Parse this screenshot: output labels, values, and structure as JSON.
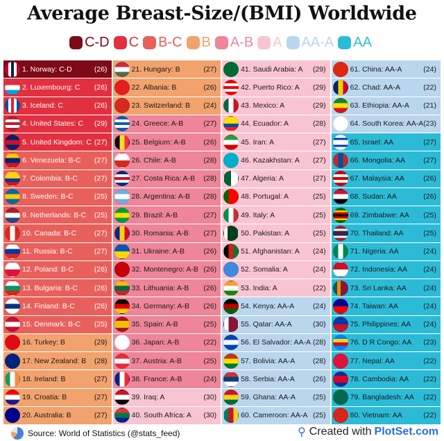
{
  "title": "Average Breast-Size/(BMI) Worldwide",
  "legend": [
    {
      "label": "C-D",
      "color": "#7d0a16"
    },
    {
      "label": "C",
      "color": "#e1303f"
    },
    {
      "label": "B-C",
      "color": "#e8605b"
    },
    {
      "label": "B",
      "color": "#f1a26d"
    },
    {
      "label": "A-B",
      "color": "#ee8598"
    },
    {
      "label": "A",
      "color": "#f9c4d1"
    },
    {
      "label": "AA-A",
      "color": "#b9d6ed"
    },
    {
      "label": "AA",
      "color": "#2cbbd7"
    }
  ],
  "chart_data": {
    "type": "table",
    "title": "Average Breast-Size/(BMI) Worldwide",
    "columns": [
      "rank",
      "country",
      "size",
      "bmi"
    ],
    "rows": [
      [
        1,
        "Norway",
        "C-D",
        26,
        "v",
        [
          "#ba0c2f",
          "#fff",
          "#00205b",
          "#fff",
          "#ba0c2f"
        ]
      ],
      [
        2,
        "Luxembourg",
        "C",
        26,
        "h",
        [
          "#ed2939",
          "#fff",
          "#00a1de"
        ]
      ],
      [
        3,
        "Iceland",
        "C",
        26,
        "v",
        [
          "#02529c",
          "#fff",
          "#dc1e35",
          "#fff",
          "#02529c"
        ]
      ],
      [
        4,
        "United States",
        "C",
        29,
        "h",
        [
          "#b22234",
          "#fff",
          "#b22234",
          "#fff",
          "#b22234"
        ]
      ],
      [
        5,
        "United Kingdom",
        "C",
        27,
        "h",
        [
          "#012169",
          "#c8102e",
          "#012169"
        ]
      ],
      [
        6,
        "Venezuela",
        "B-C",
        27,
        "h",
        [
          "#ffcc00",
          "#00247d",
          "#cf142b"
        ]
      ],
      [
        7,
        "Colombia",
        "B-C",
        27,
        "h",
        [
          "#fcd116",
          "#fcd116",
          "#003893",
          "#ce1126"
        ]
      ],
      [
        8,
        "Sweden",
        "B-C",
        25,
        "h",
        [
          "#006aa7",
          "#fecc00",
          "#006aa7"
        ]
      ],
      [
        9,
        "Netherlands",
        "B-C",
        25,
        "h",
        [
          "#ae1c28",
          "#fff",
          "#21468b"
        ]
      ],
      [
        10,
        "Canada",
        "B-C",
        27,
        "v",
        [
          "#d52b1e",
          "#fff",
          "#d52b1e"
        ]
      ],
      [
        11,
        "Russia",
        "B-C",
        27,
        "h",
        [
          "#fff",
          "#0039a6",
          "#d52b1e"
        ]
      ],
      [
        12,
        "Poland",
        "B-C",
        26,
        "h",
        [
          "#fff",
          "#dc143c"
        ]
      ],
      [
        13,
        "Bulgaria",
        "B-C",
        26,
        "h",
        [
          "#fff",
          "#00966e",
          "#d62612"
        ]
      ],
      [
        14,
        "Finland",
        "B-C",
        26,
        "h",
        [
          "#fff",
          "#003580",
          "#fff"
        ]
      ],
      [
        15,
        "Denmark",
        "B-C",
        25,
        "h",
        [
          "#c8102e",
          "#fff",
          "#c8102e"
        ]
      ],
      [
        16,
        "Turkey",
        "B",
        29,
        "h",
        [
          "#e30a17"
        ]
      ],
      [
        17,
        "New Zealand",
        "B",
        28,
        "h",
        [
          "#00247d"
        ]
      ],
      [
        18,
        "Ireland",
        "B",
        27,
        "v",
        [
          "#169b62",
          "#fff",
          "#ff883e"
        ]
      ],
      [
        19,
        "Croatia",
        "B",
        27,
        "h",
        [
          "#ff0000",
          "#fff",
          "#171796"
        ]
      ],
      [
        20,
        "Australia",
        "B",
        27,
        "h",
        [
          "#00008b"
        ]
      ],
      [
        21,
        "Hungary",
        "B",
        27,
        "h",
        [
          "#ce2939",
          "#fff",
          "#477050"
        ]
      ],
      [
        22,
        "Albania",
        "B",
        26,
        "h",
        [
          "#e41e20"
        ]
      ],
      [
        23,
        "Switzerland",
        "B",
        24,
        "h",
        [
          "#d52b1e"
        ]
      ],
      [
        24,
        "Greece",
        "A-B",
        27,
        "h",
        [
          "#0d5eaf",
          "#fff",
          "#0d5eaf",
          "#fff",
          "#0d5eaf"
        ]
      ],
      [
        25,
        "Belgium",
        "A-B",
        26,
        "v",
        [
          "#000",
          "#fdda24",
          "#ef3340"
        ]
      ],
      [
        26,
        "Chile",
        "A-B",
        28,
        "h",
        [
          "#fff",
          "#d52b1e"
        ]
      ],
      [
        27,
        "Costa Rica",
        "A-B",
        28,
        "h",
        [
          "#002b7f",
          "#fff",
          "#ce1126",
          "#fff",
          "#002b7f"
        ]
      ],
      [
        28,
        "Argentina",
        "A-B",
        28,
        "h",
        [
          "#74acdf",
          "#fff",
          "#74acdf"
        ]
      ],
      [
        29,
        "Brazil",
        "A-B",
        27,
        "h",
        [
          "#009c3b",
          "#ffdf00",
          "#009c3b"
        ]
      ],
      [
        30,
        "Romania",
        "A-B",
        27,
        "v",
        [
          "#002b7f",
          "#fcd116",
          "#ce1126"
        ]
      ],
      [
        31,
        "Ukraine",
        "A-B",
        26,
        "h",
        [
          "#0057b7",
          "#ffd700"
        ]
      ],
      [
        32,
        "Montenegro",
        "A-B",
        26,
        "h",
        [
          "#c40308"
        ]
      ],
      [
        33,
        "Lithuania",
        "A-B",
        26,
        "h",
        [
          "#fdb913",
          "#006a44",
          "#c1272d"
        ]
      ],
      [
        34,
        "Germany",
        "A-B",
        26,
        "h",
        [
          "#000",
          "#dd0000",
          "#ffce00"
        ]
      ],
      [
        35,
        "Spain",
        "A-B",
        25,
        "h",
        [
          "#aa151b",
          "#f1bf00",
          "#f1bf00",
          "#aa151b"
        ]
      ],
      [
        36,
        "Japan",
        "A-B",
        22,
        "h",
        [
          "#fff"
        ]
      ],
      [
        37,
        "Austria",
        "A-B",
        25,
        "h",
        [
          "#ed2939",
          "#fff",
          "#ed2939"
        ]
      ],
      [
        38,
        "France",
        "A-B",
        24,
        "v",
        [
          "#002395",
          "#fff",
          "#ed2939"
        ]
      ],
      [
        39,
        "Iraq",
        "A",
        30,
        "h",
        [
          "#ce1126",
          "#fff",
          "#000"
        ]
      ],
      [
        40,
        "South Africa",
        "A",
        30,
        "h",
        [
          "#de3831",
          "#007a4d",
          "#002395"
        ]
      ],
      [
        41,
        "Saudi Arabia",
        "A",
        29,
        "h",
        [
          "#006c35"
        ]
      ],
      [
        42,
        "Puerto Rico",
        "A",
        29,
        "h",
        [
          "#ed0000",
          "#fff",
          "#ed0000",
          "#fff",
          "#ed0000"
        ]
      ],
      [
        43,
        "Mexico",
        "A",
        29,
        "v",
        [
          "#006847",
          "#fff",
          "#ce1126"
        ]
      ],
      [
        44,
        "Ecuador",
        "A",
        28,
        "h",
        [
          "#ffdd00",
          "#ffdd00",
          "#034ea2",
          "#ed1c24"
        ]
      ],
      [
        45,
        "Iran",
        "A",
        27,
        "h",
        [
          "#239f40",
          "#fff",
          "#da0000"
        ]
      ],
      [
        46,
        "Kazakhstan",
        "A",
        27,
        "h",
        [
          "#00afca"
        ]
      ],
      [
        47,
        "Algeria",
        "A",
        27,
        "v",
        [
          "#006233",
          "#fff"
        ]
      ],
      [
        48,
        "Portugal",
        "A",
        25,
        "v",
        [
          "#006600",
          "#ff0000",
          "#ff0000"
        ]
      ],
      [
        49,
        "Italy",
        "A",
        25,
        "v",
        [
          "#009246",
          "#fff",
          "#ce2b37"
        ]
      ],
      [
        50,
        "Pakistan",
        "A",
        25,
        "v",
        [
          "#fff",
          "#01411c",
          "#01411c",
          "#01411c"
        ]
      ],
      [
        51,
        "Afghanistan",
        "A",
        24,
        "v",
        [
          "#000",
          "#d32011",
          "#007a36"
        ]
      ],
      [
        52,
        "Somalia",
        "A",
        24,
        "h",
        [
          "#4189dd"
        ]
      ],
      [
        53,
        "India",
        "A",
        22,
        "h",
        [
          "#ff9933",
          "#fff",
          "#138808"
        ]
      ],
      [
        54,
        "Kenya",
        "AA-A",
        24,
        "h",
        [
          "#000",
          "#bb0000",
          "#006600"
        ]
      ],
      [
        55,
        "Qatar",
        "AA-A",
        30,
        "v",
        [
          "#fff",
          "#8a1538",
          "#8a1538"
        ]
      ],
      [
        56,
        "El Salvador",
        "AA-A",
        28,
        "h",
        [
          "#0047ab",
          "#fff",
          "#0047ab"
        ]
      ],
      [
        57,
        "Bolivia",
        "AA-A",
        28,
        "h",
        [
          "#d52b1e",
          "#f9e300",
          "#007934"
        ]
      ],
      [
        58,
        "Serbia",
        "AA-A",
        26,
        "h",
        [
          "#c6363c",
          "#0c4076",
          "#fff"
        ]
      ],
      [
        59,
        "Ghana",
        "AA-A",
        25,
        "h",
        [
          "#ce1126",
          "#fcd116",
          "#006b3f"
        ]
      ],
      [
        60,
        "Cameroon",
        "AA-A",
        25,
        "v",
        [
          "#007a5e",
          "#ce1126",
          "#fcd116"
        ]
      ],
      [
        61,
        "China",
        "AA-A",
        24,
        "h",
        [
          "#de2910"
        ]
      ],
      [
        62,
        "Chad",
        "AA-A",
        22,
        "v",
        [
          "#002664",
          "#fecb00",
          "#c60c30"
        ]
      ],
      [
        63,
        "Ethiopia",
        "AA-A",
        21,
        "h",
        [
          "#078930",
          "#fcdd09",
          "#da121a"
        ]
      ],
      [
        64,
        "South Korea",
        "AA-A",
        23,
        "h",
        [
          "#fff"
        ]
      ],
      [
        65,
        "Israel",
        "AA",
        27,
        "h",
        [
          "#fff",
          "#0038b8",
          "#fff",
          "#fff",
          "#0038b8",
          "#fff"
        ]
      ],
      [
        66,
        "Mongolia",
        "AA",
        27,
        "v",
        [
          "#c4272f",
          "#015197",
          "#c4272f"
        ]
      ],
      [
        67,
        "Malaysia",
        "AA",
        26,
        "h",
        [
          "#cc0001",
          "#fff",
          "#cc0001",
          "#fff",
          "#cc0001"
        ]
      ],
      [
        68,
        "Sudan",
        "AA",
        26,
        "h",
        [
          "#d21034",
          "#fff",
          "#000"
        ]
      ],
      [
        69,
        "Zimbabwe",
        "AA",
        25,
        "h",
        [
          "#006400",
          "#ffd200",
          "#d40000",
          "#000",
          "#d40000",
          "#ffd200",
          "#006400"
        ]
      ],
      [
        70,
        "Thailand",
        "AA",
        25,
        "h",
        [
          "#a51931",
          "#f4f5f8",
          "#2d2a4a",
          "#2d2a4a",
          "#f4f5f8",
          "#a51931"
        ]
      ],
      [
        71,
        "Nigeria",
        "AA",
        24,
        "v",
        [
          "#008751",
          "#fff",
          "#008751"
        ]
      ],
      [
        72,
        "Indonesia",
        "AA",
        24,
        "h",
        [
          "#ce1126",
          "#fff"
        ]
      ],
      [
        73,
        "Sri Lanka",
        "AA",
        24,
        "v",
        [
          "#005f56",
          "#ff8c00",
          "#8d153a",
          "#8d153a"
        ]
      ],
      [
        74,
        "Taiwan",
        "AA",
        24,
        "h",
        [
          "#000095",
          "#fe0000"
        ]
      ],
      [
        75,
        "Philippines",
        "AA",
        24,
        "h",
        [
          "#0038a8",
          "#ce1126"
        ]
      ],
      [
        76,
        "D R Congo",
        "AA",
        23,
        "h",
        [
          "#007fff",
          "#f7d618",
          "#ce1021",
          "#007fff"
        ]
      ],
      [
        77,
        "Nepal",
        "AA",
        22,
        "h",
        [
          "#dc143c"
        ]
      ],
      [
        78,
        "Cambodia",
        "AA",
        22,
        "h",
        [
          "#032ea1",
          "#e00025",
          "#e00025",
          "#032ea1"
        ]
      ],
      [
        79,
        "Bangladesh",
        "AA",
        22,
        "h",
        [
          "#006a4e"
        ]
      ],
      [
        80,
        "Vietnam",
        "AA",
        22,
        "h",
        [
          "#da251d"
        ]
      ]
    ]
  },
  "footer": {
    "source": "Source: World of Statistics (@stats_feed)",
    "created_with": "Created with",
    "brand": "PlotSet.com"
  }
}
